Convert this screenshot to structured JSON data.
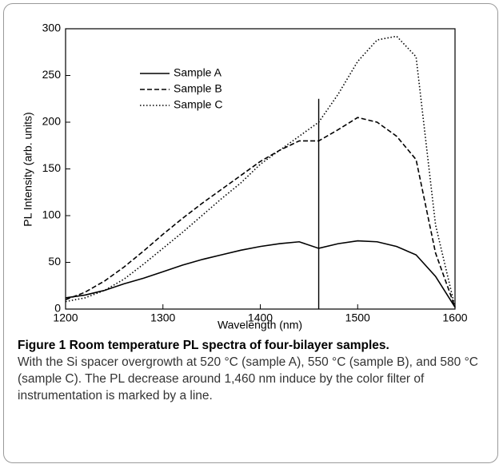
{
  "chart_data": {
    "type": "line",
    "x_label": "Wavelength (nm)",
    "y_label": "PL Intensity (arb. units)",
    "x": [
      1200,
      1220,
      1240,
      1260,
      1280,
      1300,
      1320,
      1340,
      1360,
      1380,
      1400,
      1420,
      1440,
      1460,
      1480,
      1500,
      1520,
      1540,
      1560,
      1580,
      1600
    ],
    "series": [
      {
        "name": "Sample A",
        "color": "#000000",
        "dash": "solid",
        "values": [
          12,
          15,
          20,
          27,
          33,
          40,
          47,
          53,
          58,
          63,
          67,
          70,
          72,
          65,
          70,
          73,
          72,
          67,
          58,
          35,
          2
        ]
      },
      {
        "name": "Sample B",
        "color": "#000000",
        "dash": "dashed",
        "values": [
          10,
          18,
          30,
          45,
          62,
          80,
          97,
          113,
          128,
          143,
          158,
          170,
          180,
          180,
          192,
          205,
          200,
          185,
          160,
          60,
          2
        ]
      },
      {
        "name": "Sample C",
        "color": "#000000",
        "dash": "dotted",
        "values": [
          8,
          12,
          20,
          32,
          48,
          65,
          82,
          100,
          118,
          135,
          155,
          170,
          185,
          200,
          230,
          265,
          288,
          292,
          270,
          90,
          2
        ]
      }
    ],
    "vline": {
      "x": 1460,
      "y": [
        0,
        225
      ]
    },
    "xlim": [
      1200,
      1600
    ],
    "xticks": [
      1200,
      1300,
      1400,
      1500,
      1600
    ],
    "ylim": [
      0,
      300
    ],
    "yticks": [
      0,
      50,
      100,
      150,
      200,
      250,
      300
    ],
    "grid": false,
    "legend": "upper-left"
  },
  "caption": {
    "title": "Figure 1 Room temperature PL spectra of four-bilayer samples.",
    "text": "With the Si spacer overgrowth at 520 °C (sample A), 550 °C (sample B), and 580 °C (sample C). The PL decrease around 1,460 nm induce by the color filter of instrumentation is marked by a line."
  }
}
